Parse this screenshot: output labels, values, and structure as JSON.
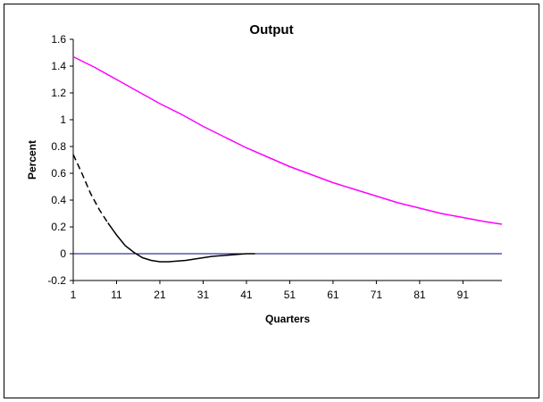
{
  "chart_data": {
    "type": "line",
    "title": "Output",
    "xlabel": "Quarters",
    "ylabel": "Percent",
    "xlim": [
      1,
      100
    ],
    "ylim": [
      -0.2,
      1.6
    ],
    "x_ticks": [
      "1",
      "11",
      "21",
      "31",
      "41",
      "51",
      "61",
      "71",
      "81",
      "91"
    ],
    "y_ticks": [
      "-0.2",
      "0",
      "0.2",
      "0.4",
      "0.6",
      "0.8",
      "1",
      "1.2",
      "1.4",
      "1.6"
    ],
    "x_tick_values": [
      1,
      11,
      21,
      31,
      41,
      51,
      61,
      71,
      81,
      91
    ],
    "y_tick_values": [
      -0.2,
      0,
      0.2,
      0.4,
      0.6,
      0.8,
      1,
      1.2,
      1.4,
      1.6
    ],
    "grid": false,
    "legend": "none",
    "series": [
      {
        "color": "#ff00ff",
        "style": "solid",
        "x": [
          1,
          6,
          11,
          16,
          21,
          26,
          31,
          36,
          41,
          46,
          51,
          56,
          61,
          66,
          71,
          76,
          81,
          86,
          91,
          96,
          100
        ],
        "y": [
          1.47,
          1.39,
          1.3,
          1.21,
          1.12,
          1.04,
          0.95,
          0.87,
          0.79,
          0.72,
          0.65,
          0.59,
          0.53,
          0.48,
          0.43,
          0.38,
          0.34,
          0.3,
          0.27,
          0.24,
          0.22
        ]
      },
      {
        "color": "#000000",
        "style": "dashed",
        "x": [
          1,
          3,
          5,
          7,
          9
        ],
        "y": [
          0.74,
          0.6,
          0.45,
          0.33,
          0.23
        ]
      },
      {
        "color": "#000000",
        "style": "solid",
        "x": [
          9,
          11,
          13,
          15,
          17,
          19,
          21,
          23,
          25,
          27,
          29,
          31,
          33,
          35,
          37,
          39,
          41,
          43
        ],
        "y": [
          0.23,
          0.14,
          0.06,
          0.01,
          -0.03,
          -0.05,
          -0.06,
          -0.06,
          -0.055,
          -0.05,
          -0.04,
          -0.03,
          -0.02,
          -0.015,
          -0.01,
          -0.005,
          0.0,
          0.0
        ]
      }
    ],
    "reference_line": {
      "y": 0,
      "color": "#000080"
    }
  }
}
